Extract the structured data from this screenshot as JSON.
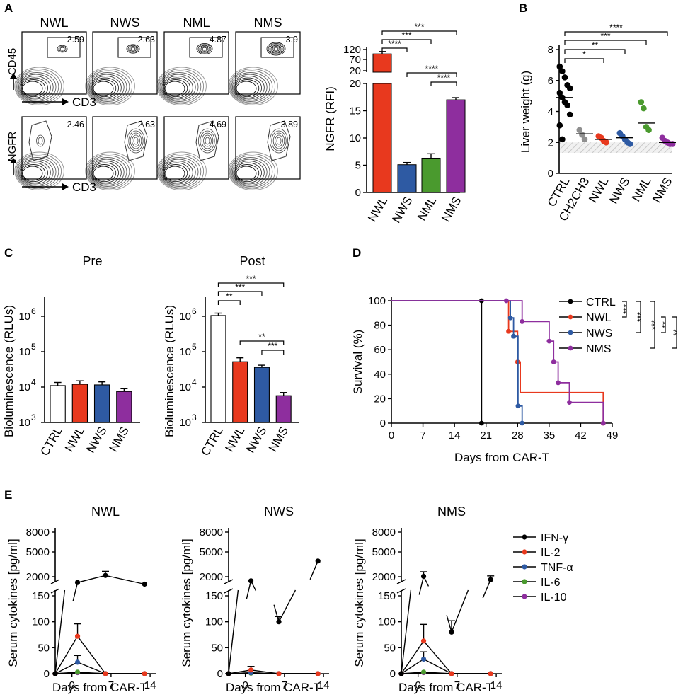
{
  "panel_labels": [
    "A",
    "B",
    "C",
    "D",
    "E"
  ],
  "colors": {
    "CTRL": "#000000",
    "NWL": "#e8391e",
    "NWS": "#2e5aa3",
    "NML": "#4a9a2e",
    "NMS": "#8e2e9e",
    "CH2CH3": "#8f8f8f",
    "white": "#ffffff"
  },
  "chart_data": [
    {
      "id": "A-flow",
      "type": "other",
      "columns": [
        "NWL",
        "NWS",
        "NML",
        "NMS"
      ],
      "row1": {
        "ylabel": "CD45",
        "xlabel": "CD3",
        "values": [
          "2.59",
          "2.63",
          "4.87",
          "3.9"
        ]
      },
      "row2": {
        "ylabel": "NGFR",
        "xlabel": "CD3",
        "values": [
          "2.46",
          "2.63",
          "4.69",
          "3.89"
        ]
      }
    },
    {
      "id": "A-bar",
      "type": "bar",
      "categories": [
        "NWL",
        "NWS",
        "NML",
        "NMS"
      ],
      "values": [
        98,
        5.1,
        6.3,
        17
      ],
      "errors": [
        12,
        0.4,
        0.8,
        0.4
      ],
      "ylabel": "NGFR (RFI)",
      "ytick_labels_top": [
        "120",
        "70",
        "20"
      ],
      "ytick_labels_bottom": [
        "20",
        "15",
        "10",
        "5",
        "0"
      ],
      "significance": [
        "***",
        "***",
        "****",
        "****",
        "****"
      ]
    },
    {
      "id": "B",
      "type": "scatter",
      "categories": [
        "CTRL",
        "CH2CH3",
        "NWL",
        "NWS",
        "NML",
        "NMS"
      ],
      "points": [
        [
          6.9,
          6.6,
          6.2,
          5.7,
          5.5,
          5.2,
          4.9,
          4.6,
          4.4,
          3.8,
          3.1,
          2.2
        ],
        [
          2.8,
          2.5,
          2.2
        ],
        [
          2.4,
          2.3,
          2.1,
          2.0
        ],
        [
          2.6,
          2.4,
          2.2,
          2.0,
          1.9
        ],
        [
          4.6,
          4.2,
          3.0,
          2.8
        ],
        [
          2.3,
          2.1,
          2.0,
          1.9,
          1.9
        ]
      ],
      "means": [
        4.9,
        2.55,
        2.2,
        2.3,
        3.25,
        2.0
      ],
      "ylabel": "Liver weight (g)",
      "ylim": [
        0,
        8
      ],
      "ytick_labels": [
        "0",
        "2",
        "4",
        "6",
        "8"
      ],
      "significance": [
        "****",
        "***",
        "**",
        "*"
      ]
    },
    {
      "id": "C-pre",
      "type": "bar",
      "title": "Pre",
      "categories": [
        "CTRL",
        "NWL",
        "NWS",
        "NMS"
      ],
      "values": [
        11000,
        12000,
        11500,
        7500
      ],
      "errors": [
        2500,
        3000,
        2500,
        1500
      ],
      "ylabel": "Bioluminescence (RLUs)",
      "yscale": "log",
      "ylim_exp": [
        3,
        6.3
      ],
      "ytick_base": "10",
      "ytick_exponents": [
        "3",
        "4",
        "5",
        "6"
      ]
    },
    {
      "id": "C-post",
      "type": "bar",
      "title": "Post",
      "categories": [
        "CTRL",
        "NWL",
        "NWS",
        "NMS"
      ],
      "values": [
        1050000,
        52000,
        36000,
        5700
      ],
      "errors": [
        180000,
        15000,
        5500,
        1300
      ],
      "ylabel": "Bioluminescence (RLUs)",
      "yscale": "log",
      "ylim_exp": [
        3,
        6.3
      ],
      "ytick_base": "10",
      "ytick_exponents": [
        "3",
        "4",
        "5",
        "6"
      ],
      "significance": [
        "***",
        "***",
        "**",
        "**",
        "***"
      ]
    },
    {
      "id": "D",
      "type": "line",
      "subtype": "kaplan-meier",
      "xlabel": "Days from CAR-T",
      "ylabel": "Survival (%)",
      "xlim": [
        0,
        49
      ],
      "ylim": [
        0,
        100
      ],
      "xtick_labels": [
        "0",
        "7",
        "14",
        "21",
        "28",
        "35",
        "42",
        "49"
      ],
      "ytick_labels": [
        "0",
        "20",
        "40",
        "60",
        "80",
        "100"
      ],
      "series": [
        {
          "name": "CTRL",
          "steps": [
            [
              0,
              100
            ],
            [
              20,
              100
            ],
            [
              20,
              0
            ]
          ],
          "points": [
            [
              20,
              100
            ],
            [
              20,
              0
            ]
          ]
        },
        {
          "name": "NWL",
          "steps": [
            [
              0,
              100
            ],
            [
              26,
              100
            ],
            [
              26,
              75
            ],
            [
              28,
              75
            ],
            [
              28,
              50
            ],
            [
              28.6,
              50
            ],
            [
              28.6,
              25
            ],
            [
              47,
              25
            ],
            [
              47,
              0
            ]
          ],
          "points": [
            [
              26,
              75
            ],
            [
              28,
              50
            ],
            [
              47,
              0
            ]
          ]
        },
        {
          "name": "NWS",
          "steps": [
            [
              0,
              100
            ],
            [
              26.4,
              100
            ],
            [
              26.4,
              86
            ],
            [
              27.1,
              86
            ],
            [
              27.1,
              71
            ],
            [
              28.1,
              71
            ],
            [
              28.1,
              14
            ],
            [
              29,
              14
            ],
            [
              29,
              0
            ]
          ],
          "points": [
            [
              26.4,
              86
            ],
            [
              27.1,
              71
            ],
            [
              28.1,
              14
            ],
            [
              29,
              0
            ]
          ]
        },
        {
          "name": "NMS",
          "steps": [
            [
              0,
              100
            ],
            [
              25.5,
              100
            ],
            [
              25.5,
              100
            ],
            [
              29,
              100
            ],
            [
              29,
              83
            ],
            [
              35,
              83
            ],
            [
              35,
              67
            ],
            [
              36,
              67
            ],
            [
              36,
              50
            ],
            [
              37,
              50
            ],
            [
              37,
              33
            ],
            [
              39.5,
              33
            ],
            [
              39.5,
              17
            ],
            [
              47,
              17
            ],
            [
              47,
              0
            ]
          ],
          "points": [
            [
              25.5,
              100
            ],
            [
              29,
              83
            ],
            [
              35,
              67
            ],
            [
              36,
              50
            ],
            [
              37,
              33
            ],
            [
              39.5,
              17
            ],
            [
              47,
              0
            ]
          ]
        }
      ],
      "legend": [
        "CTRL",
        "NWL",
        "NWS",
        "NMS"
      ],
      "significance": [
        "***",
        "***",
        "***",
        "**",
        "**"
      ]
    },
    {
      "id": "E-NWL",
      "type": "line",
      "title": "NWL",
      "xlabel": "Days from CAR-T",
      "ylabel": "Serum cytokines [pg/ml]",
      "xtick_labels": [
        "0",
        "7",
        "14"
      ],
      "ytick_labels_top": [
        "8000",
        "5000",
        "2000"
      ],
      "ytick_labels_bottom": [
        "150",
        "100",
        "50",
        "0"
      ],
      "series": [
        {
          "name": "IFN-γ",
          "x": [
            -3,
            1,
            6,
            13
          ],
          "y": [
            0,
            1300,
            2150,
            1100
          ],
          "err": [
            0,
            0,
            500,
            0
          ]
        },
        {
          "name": "IL-2",
          "x": [
            -3,
            1,
            6,
            13
          ],
          "y": [
            0,
            72,
            0,
            0
          ],
          "err": [
            0,
            24,
            0,
            0
          ]
        },
        {
          "name": "TNF-α",
          "x": [
            -3,
            1,
            6,
            13
          ],
          "y": [
            0,
            22,
            0,
            0
          ],
          "err": [
            0,
            13,
            0,
            0
          ]
        },
        {
          "name": "IL-6",
          "x": [
            -3,
            1,
            6,
            13
          ],
          "y": [
            0,
            3,
            0,
            0
          ],
          "err": [
            0,
            0,
            0,
            0
          ]
        },
        {
          "name": "IL-10",
          "x": [
            -3,
            1,
            6,
            13
          ],
          "y": [
            0,
            2,
            0,
            0
          ],
          "err": [
            0,
            0,
            0,
            0
          ]
        }
      ]
    },
    {
      "id": "E-NWS",
      "type": "line",
      "title": "NWS",
      "xlabel": "Days from CAR-T",
      "ylabel": "Serum cytokines [pg/ml]",
      "xtick_labels": [
        "0",
        "7",
        "14"
      ],
      "ytick_labels_top": [
        "8000",
        "5000",
        "2000"
      ],
      "ytick_labels_bottom": [
        "150",
        "100",
        "50",
        "0"
      ],
      "series": [
        {
          "name": "IFN-γ",
          "x": [
            -3,
            1,
            6,
            13
          ],
          "y": [
            0,
            1500,
            100,
            3900
          ],
          "err": [
            0,
            0,
            10,
            0
          ]
        },
        {
          "name": "IL-2",
          "x": [
            -3,
            1,
            6,
            13
          ],
          "y": [
            0,
            7,
            0,
            0
          ],
          "err": [
            0,
            7,
            0,
            0
          ]
        },
        {
          "name": "TNF-α",
          "x": [
            -3,
            1,
            6,
            13
          ],
          "y": [
            0,
            2,
            0,
            0
          ],
          "err": [
            0,
            0,
            0,
            0
          ]
        },
        {
          "name": "IL-6",
          "x": [
            -3,
            1,
            6,
            13
          ],
          "y": [
            0,
            1,
            0,
            0
          ],
          "err": [
            0,
            0,
            0,
            0
          ]
        },
        {
          "name": "IL-10",
          "x": [
            -3,
            1,
            6,
            13
          ],
          "y": [
            0,
            1,
            0,
            0
          ],
          "err": [
            0,
            0,
            0,
            0
          ]
        }
      ]
    },
    {
      "id": "E-NMS",
      "type": "line",
      "title": "NMS",
      "xlabel": "Days from CAR-T",
      "ylabel": "Serum cytokines [pg/ml]",
      "xtick_labels": [
        "0",
        "7",
        "14"
      ],
      "ytick_labels_top": [
        "8000",
        "5000",
        "2000"
      ],
      "ytick_labels_bottom": [
        "150",
        "100",
        "50",
        "0"
      ],
      "series": [
        {
          "name": "IFN-γ",
          "x": [
            -3,
            1,
            6,
            13
          ],
          "y": [
            0,
            2050,
            80,
            1650
          ],
          "err": [
            0,
            550,
            22,
            450
          ]
        },
        {
          "name": "IL-2",
          "x": [
            -3,
            1,
            6,
            13
          ],
          "y": [
            0,
            63,
            0,
            0
          ],
          "err": [
            0,
            32,
            0,
            0
          ]
        },
        {
          "name": "TNF-α",
          "x": [
            -3,
            1,
            6,
            13
          ],
          "y": [
            0,
            28,
            0,
            0
          ],
          "err": [
            0,
            14,
            0,
            0
          ]
        },
        {
          "name": "IL-6",
          "x": [
            -3,
            1,
            6,
            13
          ],
          "y": [
            0,
            3,
            0,
            0
          ],
          "err": [
            0,
            0,
            0,
            0
          ]
        },
        {
          "name": "IL-10",
          "x": [
            -3,
            1,
            6,
            13
          ],
          "y": [
            0,
            2,
            0,
            0
          ],
          "err": [
            0,
            0,
            0,
            0
          ]
        }
      ],
      "legend": [
        "IFN-γ",
        "IL-2",
        "TNF-α",
        "IL-6",
        "IL-10"
      ]
    }
  ]
}
